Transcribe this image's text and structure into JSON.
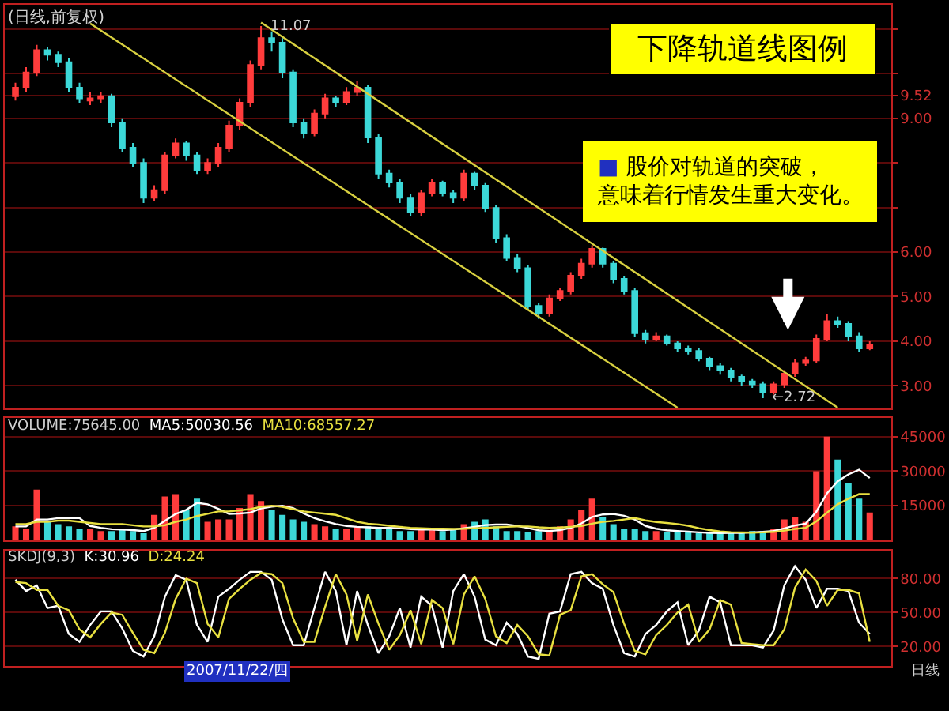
{
  "chart_data": [
    {
      "type": "candlestick",
      "title": "下降轨道线图例",
      "categories": [
        null,
        null,
        null,
        null,
        null,
        null,
        null,
        null,
        null,
        null,
        null,
        null,
        null,
        null,
        null,
        null,
        null,
        null,
        null,
        null,
        null,
        null,
        null,
        null,
        null,
        null,
        null,
        null,
        null,
        null,
        null,
        null,
        null,
        null,
        null,
        null,
        null,
        null,
        null,
        null,
        null,
        null,
        null,
        null,
        null,
        null,
        null,
        null,
        null,
        null,
        null,
        null,
        null,
        null,
        null,
        null,
        null,
        null,
        null,
        null,
        null,
        null,
        null,
        null,
        null,
        null,
        null,
        null,
        null,
        null,
        null,
        null,
        null,
        null,
        null,
        null,
        null,
        null,
        null,
        null,
        null
      ],
      "ylim": [
        2.5,
        11.55
      ],
      "yticks": [
        {
          "value": 3,
          "label": "3.00"
        },
        {
          "value": 4,
          "label": "4.00"
        },
        {
          "value": 5,
          "label": "5.00"
        },
        {
          "value": 6,
          "label": "6.00"
        },
        {
          "value": 7,
          "label": null
        },
        {
          "value": 8,
          "label": null
        },
        {
          "value": 9,
          "label": "9.00"
        },
        {
          "value": 9.52,
          "label": "9.52"
        },
        {
          "value": 10,
          "label": null
        },
        {
          "value": 11,
          "label": null
        }
      ],
      "tick_labels": "y",
      "grid": "y",
      "ohlc": [
        [
          9.5,
          9.8,
          9.4,
          9.69
        ],
        [
          9.69,
          10.15,
          9.6,
          10.03
        ],
        [
          10.03,
          10.65,
          9.95,
          10.53
        ],
        [
          10.53,
          10.6,
          10.3,
          10.43
        ],
        [
          10.43,
          10.5,
          10.15,
          10.26
        ],
        [
          10.26,
          10.35,
          9.6,
          9.69
        ],
        [
          9.69,
          9.8,
          9.35,
          9.45
        ],
        [
          9.4,
          9.6,
          9.3,
          9.45
        ],
        [
          9.45,
          9.6,
          9.35,
          9.5
        ],
        [
          9.5,
          9.55,
          8.8,
          8.91
        ],
        [
          8.91,
          9.0,
          8.25,
          8.34
        ],
        [
          8.34,
          8.45,
          7.9,
          8.0
        ],
        [
          8.0,
          8.1,
          7.1,
          7.22
        ],
        [
          7.22,
          7.5,
          7.15,
          7.39
        ],
        [
          7.39,
          8.25,
          7.3,
          8.17
        ],
        [
          8.17,
          8.55,
          8.1,
          8.44
        ],
        [
          8.44,
          8.5,
          8.05,
          8.17
        ],
        [
          8.17,
          8.25,
          7.75,
          7.83
        ],
        [
          7.83,
          8.1,
          7.75,
          8.0
        ],
        [
          8.0,
          8.45,
          7.9,
          8.34
        ],
        [
          8.34,
          8.95,
          8.25,
          8.84
        ],
        [
          8.84,
          9.45,
          8.75,
          9.35
        ],
        [
          9.35,
          10.3,
          9.25,
          10.2
        ],
        [
          10.2,
          11.07,
          10.1,
          10.8
        ],
        [
          10.8,
          10.95,
          10.5,
          10.7
        ],
        [
          10.7,
          10.8,
          9.9,
          10.03
        ],
        [
          10.03,
          10.1,
          8.8,
          8.91
        ],
        [
          8.91,
          9.0,
          8.55,
          8.68
        ],
        [
          8.68,
          9.2,
          8.6,
          9.11
        ],
        [
          9.11,
          9.55,
          9.0,
          9.45
        ],
        [
          9.45,
          9.5,
          9.25,
          9.35
        ],
        [
          9.35,
          9.7,
          9.3,
          9.59
        ],
        [
          9.59,
          9.85,
          9.5,
          9.69
        ],
        [
          9.69,
          9.75,
          8.45,
          8.57
        ],
        [
          8.57,
          8.65,
          7.65,
          7.76
        ],
        [
          7.76,
          7.85,
          7.45,
          7.56
        ],
        [
          7.56,
          7.65,
          7.1,
          7.22
        ],
        [
          7.22,
          7.3,
          6.8,
          6.89
        ],
        [
          6.89,
          7.4,
          6.8,
          7.32
        ],
        [
          7.32,
          7.65,
          7.25,
          7.56
        ],
        [
          7.56,
          7.6,
          7.25,
          7.32
        ],
        [
          7.32,
          7.4,
          7.1,
          7.22
        ],
        [
          7.22,
          7.85,
          7.15,
          7.76
        ],
        [
          7.76,
          7.8,
          7.4,
          7.49
        ],
        [
          7.49,
          7.55,
          6.9,
          6.99
        ],
        [
          6.99,
          7.05,
          6.2,
          6.31
        ],
        [
          6.31,
          6.4,
          5.8,
          5.87
        ],
        [
          5.87,
          5.95,
          5.55,
          5.64
        ],
        [
          5.64,
          5.7,
          4.7,
          4.79
        ],
        [
          4.79,
          4.85,
          4.5,
          4.62
        ],
        [
          4.62,
          5.05,
          4.55,
          4.96
        ],
        [
          4.96,
          5.2,
          4.9,
          5.13
        ],
        [
          5.13,
          5.55,
          5.05,
          5.47
        ],
        [
          5.47,
          5.85,
          5.4,
          5.74
        ],
        [
          5.74,
          6.15,
          5.65,
          6.07
        ],
        [
          6.07,
          6.1,
          5.65,
          5.74
        ],
        [
          5.74,
          5.8,
          5.3,
          5.4
        ],
        [
          5.4,
          5.45,
          5.05,
          5.13
        ],
        [
          5.13,
          5.2,
          4.1,
          4.18
        ],
        [
          4.18,
          4.25,
          3.95,
          4.05
        ],
        [
          4.05,
          4.2,
          4.0,
          4.11
        ],
        [
          4.11,
          4.15,
          3.9,
          3.95
        ],
        [
          3.95,
          4.0,
          3.75,
          3.84
        ],
        [
          3.84,
          3.9,
          3.7,
          3.78
        ],
        [
          3.78,
          3.85,
          3.55,
          3.61
        ],
        [
          3.61,
          3.65,
          3.35,
          3.44
        ],
        [
          3.44,
          3.5,
          3.25,
          3.34
        ],
        [
          3.34,
          3.4,
          3.1,
          3.2
        ],
        [
          3.2,
          3.25,
          3.0,
          3.1
        ],
        [
          3.1,
          3.15,
          2.95,
          3.03
        ],
        [
          3.03,
          3.1,
          2.72,
          2.86
        ],
        [
          2.86,
          3.1,
          2.8,
          3.03
        ],
        [
          3.03,
          3.35,
          2.95,
          3.27
        ],
        [
          3.27,
          3.6,
          3.2,
          3.51
        ],
        [
          3.51,
          3.65,
          3.45,
          3.57
        ],
        [
          3.57,
          4.15,
          3.5,
          4.05
        ],
        [
          4.05,
          4.6,
          4.0,
          4.45
        ],
        [
          4.45,
          4.55,
          4.3,
          4.39
        ],
        [
          4.39,
          4.45,
          4.0,
          4.11
        ],
        [
          4.11,
          4.2,
          3.75,
          3.84
        ],
        [
          3.84,
          4.0,
          3.8,
          3.91
        ]
      ],
      "colors": [
        "#ff3c3c",
        "#ff3c3c",
        "#ff3c3c",
        "#3cd8d8",
        "#3cd8d8",
        "#3cd8d8",
        "#3cd8d8",
        "#ff3c3c",
        "#ff3c3c",
        "#3cd8d8",
        "#3cd8d8",
        "#3cd8d8",
        "#3cd8d8",
        "#ff3c3c",
        "#ff3c3c",
        "#ff3c3c",
        "#3cd8d8",
        "#3cd8d8",
        "#ff3c3c",
        "#ff3c3c",
        "#ff3c3c",
        "#ff3c3c",
        "#ff3c3c",
        "#ff3c3c",
        "#3cd8d8",
        "#3cd8d8",
        "#3cd8d8",
        "#3cd8d8",
        "#ff3c3c",
        "#ff3c3c",
        "#3cd8d8",
        "#ff3c3c",
        "#ff3c3c",
        "#3cd8d8",
        "#3cd8d8",
        "#3cd8d8",
        "#3cd8d8",
        "#3cd8d8",
        "#ff3c3c",
        "#ff3c3c",
        "#3cd8d8",
        "#3cd8d8",
        "#ff3c3c",
        "#3cd8d8",
        "#3cd8d8",
        "#3cd8d8",
        "#3cd8d8",
        "#3cd8d8",
        "#3cd8d8",
        "#3cd8d8",
        "#ff3c3c",
        "#ff3c3c",
        "#ff3c3c",
        "#ff3c3c",
        "#ff3c3c",
        "#3cd8d8",
        "#3cd8d8",
        "#3cd8d8",
        "#3cd8d8",
        "#3cd8d8",
        "#ff3c3c",
        "#3cd8d8",
        "#3cd8d8",
        "#3cd8d8",
        "#3cd8d8",
        "#3cd8d8",
        "#3cd8d8",
        "#3cd8d8",
        "#3cd8d8",
        "#3cd8d8",
        "#3cd8d8",
        "#ff3c3c",
        "#ff3c3c",
        "#ff3c3c",
        "#ff3c3c",
        "#ff3c3c",
        "#ff3c3c",
        "#3cd8d8",
        "#3cd8d8",
        "#3cd8d8",
        "#ff3c3c"
      ],
      "series": [
        {
          "type": "line",
          "values": [
            null,
            null,
            null,
            null,
            null,
            null,
            null,
            11.13,
            null,
            null,
            null,
            null,
            null,
            null,
            null,
            null,
            null,
            null,
            null,
            null,
            null,
            null,
            null,
            null,
            null,
            null,
            null,
            null,
            null,
            null,
            null,
            null,
            null,
            null,
            null,
            null,
            null,
            null,
            null,
            null,
            null,
            null,
            null,
            null,
            null,
            null,
            null,
            null,
            null,
            null,
            null,
            null,
            null,
            null,
            null,
            null,
            null,
            null,
            null,
            null,
            null,
            null,
            2.51,
            null,
            null,
            null,
            null,
            null,
            null,
            null,
            null,
            null,
            null,
            null,
            null,
            null,
            null,
            null,
            null,
            null,
            null
          ],
          "color": "#d8d040"
        },
        {
          "type": "line",
          "values": [
            null,
            null,
            null,
            null,
            null,
            null,
            null,
            null,
            null,
            null,
            null,
            null,
            null,
            null,
            null,
            null,
            null,
            null,
            null,
            null,
            null,
            null,
            null,
            11.15,
            null,
            null,
            null,
            null,
            null,
            null,
            null,
            null,
            null,
            null,
            null,
            null,
            null,
            null,
            null,
            null,
            null,
            null,
            null,
            null,
            null,
            null,
            null,
            null,
            null,
            null,
            null,
            null,
            null,
            null,
            null,
            null,
            null,
            null,
            null,
            null,
            null,
            null,
            null,
            null,
            null,
            null,
            null,
            null,
            null,
            null,
            null,
            null,
            null,
            null,
            null,
            null,
            null,
            2.51,
            null,
            null,
            null
          ],
          "color": "#d8d040"
        }
      ],
      "annotations": [
        "(日线,前复权)",
        "■ 股价对轨道的突破，意味着行情发生重大变化。",
        "11.07",
        "←2.72"
      ]
    },
    {
      "type": "bar",
      "categories": [
        null,
        null,
        null,
        null,
        null,
        null,
        null,
        null,
        null,
        null,
        null,
        null,
        null,
        null,
        null,
        null,
        null,
        null,
        null,
        null,
        null,
        null,
        null,
        null,
        null,
        null,
        null,
        null,
        null,
        null,
        null,
        null,
        null,
        null,
        null,
        null,
        null,
        null,
        null,
        null,
        null,
        null,
        null,
        null,
        null,
        null,
        null,
        null,
        null,
        null,
        null,
        null,
        null,
        null,
        null,
        null,
        null,
        null,
        null,
        null,
        null,
        null,
        null,
        null,
        null,
        null,
        null,
        null,
        null,
        null,
        null,
        null,
        null,
        null,
        null,
        null,
        null,
        null,
        null,
        null,
        null
      ],
      "ylim": [
        0,
        53000
      ],
      "yticks": [
        15000,
        30000,
        45000
      ],
      "tick_labels": "y",
      "grid": "y",
      "series": [
        {
          "type": "bar",
          "values": [
            6000,
            5000,
            22000,
            8000,
            7000,
            6000,
            5000,
            5000,
            4000,
            4000,
            5000,
            4000,
            3000,
            11000,
            19000,
            20000,
            13000,
            18000,
            8000,
            9000,
            9000,
            14000,
            20000,
            17000,
            13000,
            11000,
            9000,
            8000,
            7000,
            6000,
            5000,
            5000,
            6000,
            6000,
            5000,
            5000,
            4000,
            4000,
            5000,
            5000,
            4000,
            5000,
            7000,
            8000,
            9000,
            6000,
            4000,
            4000,
            3500,
            4000,
            4500,
            6000,
            9000,
            13000,
            18000,
            10000,
            7000,
            5000,
            5000,
            4000,
            4000,
            3500,
            3500,
            3500,
            3000,
            3000,
            3000,
            3500,
            3500,
            4000,
            4000,
            5000,
            9000,
            10000,
            8000,
            30000,
            45000,
            35000,
            25000,
            18000,
            12000
          ],
          "colors": [
            "#ff3c3c",
            "#ff3c3c",
            "#ff3c3c",
            "#3cd8d8",
            "#3cd8d8",
            "#3cd8d8",
            "#3cd8d8",
            "#ff3c3c",
            "#ff3c3c",
            "#3cd8d8",
            "#3cd8d8",
            "#3cd8d8",
            "#3cd8d8",
            "#ff3c3c",
            "#ff3c3c",
            "#ff3c3c",
            "#3cd8d8",
            "#3cd8d8",
            "#ff3c3c",
            "#ff3c3c",
            "#ff3c3c",
            "#ff3c3c",
            "#ff3c3c",
            "#ff3c3c",
            "#3cd8d8",
            "#3cd8d8",
            "#3cd8d8",
            "#3cd8d8",
            "#ff3c3c",
            "#ff3c3c",
            "#3cd8d8",
            "#ff3c3c",
            "#ff3c3c",
            "#3cd8d8",
            "#3cd8d8",
            "#3cd8d8",
            "#3cd8d8",
            "#3cd8d8",
            "#ff3c3c",
            "#ff3c3c",
            "#3cd8d8",
            "#3cd8d8",
            "#ff3c3c",
            "#3cd8d8",
            "#3cd8d8",
            "#3cd8d8",
            "#3cd8d8",
            "#3cd8d8",
            "#3cd8d8",
            "#3cd8d8",
            "#ff3c3c",
            "#ff3c3c",
            "#ff3c3c",
            "#ff3c3c",
            "#ff3c3c",
            "#3cd8d8",
            "#3cd8d8",
            "#3cd8d8",
            "#3cd8d8",
            "#3cd8d8",
            "#ff3c3c",
            "#3cd8d8",
            "#3cd8d8",
            "#3cd8d8",
            "#3cd8d8",
            "#3cd8d8",
            "#3cd8d8",
            "#3cd8d8",
            "#3cd8d8",
            "#3cd8d8",
            "#3cd8d8",
            "#ff3c3c",
            "#ff3c3c",
            "#ff3c3c",
            "#ff3c3c",
            "#ff3c3c",
            "#ff3c3c",
            "#3cd8d8",
            "#3cd8d8",
            "#3cd8d8",
            "#ff3c3c"
          ]
        },
        {
          "type": "line",
          "color": "#ffffff",
          "values": [
            6000,
            6000,
            9000,
            9000,
            9600,
            9600,
            9600,
            6200,
            5400,
            4800,
            4600,
            4400,
            4000,
            5400,
            8400,
            11400,
            13200,
            16200,
            15600,
            13600,
            11400,
            11600,
            12000,
            13800,
            14600,
            15000,
            14000,
            11600,
            9600,
            8200,
            7000,
            6200,
            5800,
            5600,
            5400,
            5400,
            5200,
            4800,
            4600,
            4600,
            4400,
            4600,
            5200,
            5800,
            6600,
            6800,
            6800,
            6200,
            5300,
            4300,
            4000,
            4400,
            5400,
            7300,
            10100,
            11200,
            11400,
            10600,
            9000,
            6200,
            5000,
            4300,
            4000,
            3700,
            3400,
            3200,
            3100,
            3200,
            3200,
            3400,
            3600,
            4000,
            5100,
            6400,
            7200,
            12400,
            20400,
            25600,
            28600,
            30600,
            27000
          ]
        },
        {
          "type": "line",
          "color": "#e8e040",
          "values": [
            7000,
            7000,
            8000,
            8000,
            8500,
            8500,
            8000,
            7500,
            7000,
            7000,
            7000,
            6500,
            6000,
            6000,
            6500,
            8000,
            9000,
            10500,
            11500,
            12500,
            12500,
            13000,
            13500,
            14500,
            15000,
            14500,
            13500,
            12500,
            12000,
            11500,
            11000,
            9500,
            8000,
            7200,
            6800,
            6300,
            5800,
            5400,
            5200,
            5000,
            5000,
            4900,
            5000,
            5200,
            5400,
            5600,
            5800,
            6000,
            6000,
            5600,
            5400,
            5500,
            5800,
            6200,
            7200,
            8000,
            8400,
            9000,
            9600,
            8600,
            7900,
            7500,
            7000,
            6300,
            5200,
            4400,
            3800,
            3500,
            3400,
            3300,
            3400,
            3600,
            4200,
            4900,
            5400,
            8200,
            12000,
            15600,
            18000,
            20000,
            20000
          ]
        }
      ],
      "annotations": [
        "VOLUME:75645.00",
        "MA5:50030.56",
        "MA10:68557.27"
      ]
    },
    {
      "type": "line",
      "categories": [
        null,
        null,
        null,
        null,
        null,
        null,
        null,
        null,
        null,
        null,
        null,
        null,
        null,
        null,
        null,
        null,
        null,
        null,
        null,
        null,
        null,
        null,
        null,
        null,
        null,
        null,
        null,
        null,
        null,
        null,
        null,
        null,
        null,
        null,
        null,
        null,
        null,
        null,
        null,
        null,
        null,
        null,
        null,
        null,
        null,
        null,
        null,
        null,
        null,
        null,
        null,
        null,
        null,
        null,
        null,
        null,
        null,
        null,
        null,
        null,
        null,
        null,
        null,
        null,
        null,
        null,
        null,
        null,
        null,
        null,
        null,
        null,
        null,
        null,
        null,
        null,
        null,
        null,
        null,
        null,
        null
      ],
      "ylim": [
        3,
        105
      ],
      "yticks": [
        {
          "value": 20,
          "label": "20.00"
        },
        {
          "value": 50,
          "label": "50.00"
        },
        {
          "value": 80,
          "label": "80.00"
        }
      ],
      "tick_labels": "y",
      "grid": "y",
      "series": [
        {
          "color": "#ffffff",
          "values": [
            79,
            69,
            74,
            54,
            56,
            31,
            24,
            39,
            51,
            51,
            36,
            16,
            11,
            29,
            64,
            83,
            79,
            39,
            24,
            64,
            71,
            79,
            86,
            86,
            79,
            44,
            21,
            21,
            54,
            86,
            69,
            21,
            69,
            39,
            14,
            29,
            54,
            19,
            64,
            56,
            19,
            69,
            84,
            64,
            26,
            21,
            41,
            31,
            11,
            9,
            49,
            51,
            84,
            86,
            76,
            71,
            39,
            14,
            11,
            31,
            39,
            51,
            59,
            21,
            34,
            64,
            59,
            21,
            21,
            21,
            19,
            34,
            74,
            91,
            79,
            54,
            71,
            71,
            69,
            41,
            31
          ]
        },
        {
          "color": "#e8e040",
          "values": [
            77,
            76,
            70,
            70,
            56,
            52,
            35,
            28,
            40,
            50,
            48,
            32,
            17,
            14,
            32,
            62,
            80,
            76,
            40,
            28,
            62,
            71,
            79,
            85,
            84,
            76,
            45,
            24,
            24,
            55,
            84,
            66,
            25,
            66,
            40,
            17,
            30,
            52,
            22,
            61,
            54,
            22,
            66,
            82,
            62,
            29,
            23,
            39,
            29,
            13,
            12,
            48,
            52,
            82,
            84,
            75,
            68,
            40,
            16,
            13,
            30,
            39,
            50,
            57,
            24,
            35,
            61,
            57,
            23,
            22,
            21,
            21,
            35,
            72,
            88,
            78,
            56,
            70,
            70,
            67,
            24
          ]
        }
      ],
      "annotations": [
        "SKDJ(9,3)",
        "K:30.96",
        "D:24.24",
        "2007/11/22/四",
        "日线"
      ]
    }
  ]
}
